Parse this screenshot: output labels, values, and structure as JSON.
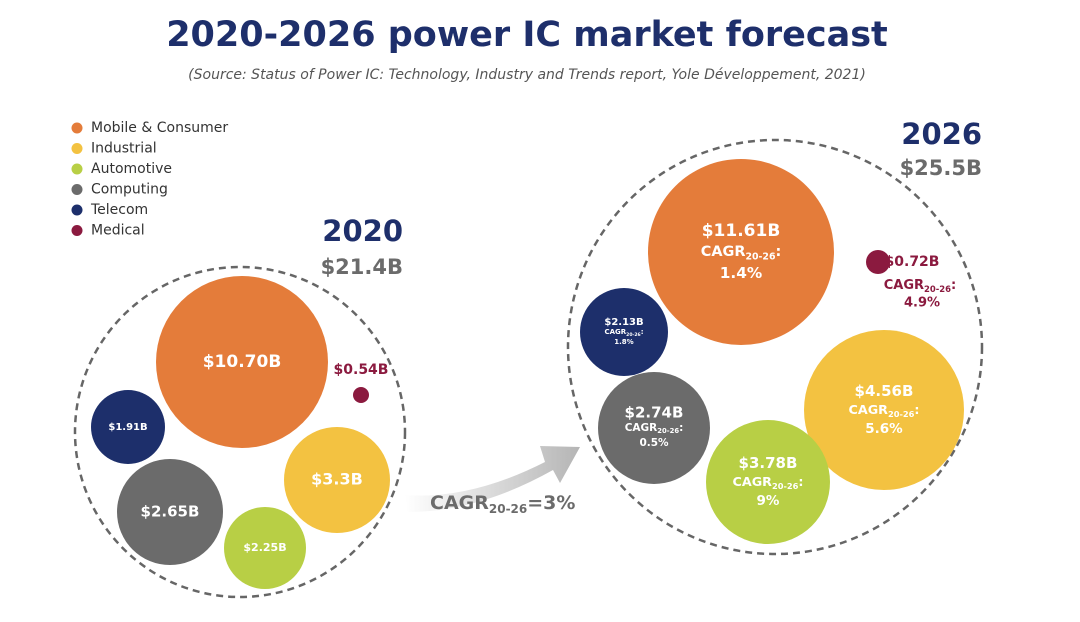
{
  "chart_data": {
    "type": "bubble",
    "title": "2020-2026 power IC market forecast",
    "subtitle": "(Source: Status of Power IC: Technology, Industry and Trends report, Yole Développement, 2021)",
    "categories": [
      "2020",
      "2026"
    ],
    "total_labels": [
      "$21.4B",
      "$25.5B"
    ],
    "cagr_label": "CAGR",
    "cagr_sub": "20-26",
    "cagr_sep": ":",
    "overall_cagr": "=3%",
    "series": [
      {
        "name": "Mobile & Consumer",
        "color": "#e47c3a",
        "values": [
          10.7,
          11.61
        ],
        "value_labels": [
          "$10.70B",
          "$11.61B"
        ],
        "cagr_labels": [
          null,
          "1.4%"
        ]
      },
      {
        "name": "Industrial",
        "color": "#f3c241",
        "values": [
          3.3,
          4.56
        ],
        "value_labels": [
          "$3.3B",
          "$4.56B"
        ],
        "cagr_labels": [
          null,
          "5.6%"
        ]
      },
      {
        "name": "Automotive",
        "color": "#b8cf45",
        "values": [
          2.25,
          3.78
        ],
        "value_labels": [
          "$2.25B",
          "$3.78B"
        ],
        "cagr_labels": [
          null,
          "9%"
        ]
      },
      {
        "name": "Computing",
        "color": "#6b6b6b",
        "values": [
          2.65,
          2.74
        ],
        "value_labels": [
          "$2.65B",
          "$2.74B"
        ],
        "cagr_labels": [
          null,
          "0.5%"
        ]
      },
      {
        "name": "Telecom",
        "color": "#1d2f6b",
        "values": [
          1.91,
          2.13
        ],
        "value_labels": [
          "$1.91B",
          "$2.13B"
        ],
        "cagr_labels": [
          null,
          "1.8%"
        ]
      },
      {
        "name": "Medical",
        "color": "#8b1a3f",
        "values": [
          0.54,
          0.72
        ],
        "value_labels": [
          "$0.54B",
          "$0.72B"
        ],
        "cagr_labels": [
          null,
          "4.9%"
        ]
      }
    ]
  }
}
